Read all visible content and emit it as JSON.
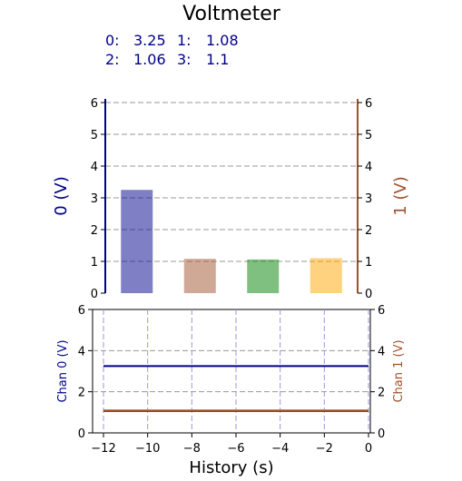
{
  "app": {
    "title": "Voltmeter",
    "readout": [
      {
        "channel": "0:",
        "value": "3.25"
      },
      {
        "channel": "1:",
        "value": "1.08"
      },
      {
        "channel": "2:",
        "value": "1.06"
      },
      {
        "channel": "3:",
        "value": "1.1"
      }
    ]
  },
  "colors": {
    "chan0": "#00008b",
    "chan1": "#a0522d",
    "chan2": "#008000",
    "chan3": "#ffa500",
    "grid_top": "#999999",
    "grid_bottom_v": "#9999dd"
  },
  "chart_data": [
    {
      "type": "bar",
      "categories": [
        "0",
        "1",
        "2",
        "3"
      ],
      "values": [
        3.25,
        1.08,
        1.06,
        1.1
      ],
      "ylabel_left": "0 (V)",
      "ylabel_right": "1 (V)",
      "ylim": [
        0,
        6
      ],
      "yticks": [
        "0",
        "1",
        "2",
        "3",
        "4",
        "5",
        "6"
      ],
      "grid": "horizontal dashed"
    },
    {
      "type": "line",
      "xlabel": "History (s)",
      "ylabel_left": "Chan 0 (V)",
      "ylabel_right": "Chan 1 (V)",
      "xlim": [
        -12,
        0
      ],
      "ylim": [
        0,
        6
      ],
      "xticks": [
        "−12",
        "−10",
        "−8",
        "−6",
        "−4",
        "−2",
        "0"
      ],
      "yticks": [
        "0",
        "2",
        "4",
        "6"
      ],
      "grid": "dashed",
      "series": [
        {
          "x": [
            -12,
            0
          ],
          "y": [
            3.25,
            3.25
          ]
        },
        {
          "x": [
            -12,
            0
          ],
          "y": [
            1.08,
            1.08
          ]
        },
        {
          "x": [
            -12,
            0
          ],
          "y": [
            1.06,
            1.06
          ]
        },
        {
          "x": [
            -12,
            0
          ],
          "y": [
            1.1,
            1.1
          ]
        }
      ]
    }
  ]
}
